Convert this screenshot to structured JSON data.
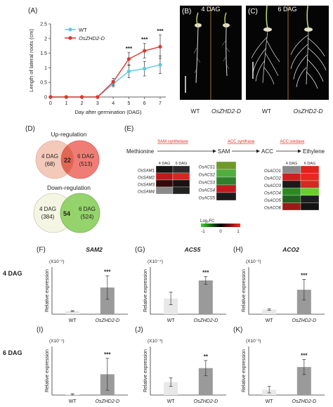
{
  "panels": {
    "A": "(A)",
    "B": "(B)",
    "C": "(C)",
    "D": "(D)",
    "E": "(E)",
    "F": "(F)",
    "G": "(G)",
    "H": "(H)",
    "I": "(I)",
    "J": "(J)",
    "K": "(K)"
  },
  "photos": {
    "b_title": "4 DAG",
    "c_title": "6 DAG",
    "b_wt": "WT",
    "b_mut": "OsZHD2-D",
    "c_wt": "WT",
    "c_mut": "OsZHD2-D"
  },
  "venn": {
    "up_title": "Up-regulation",
    "down_title": "Down-regulation",
    "up_left_label": "4 DAG",
    "up_left_count": "(68)",
    "up_overlap": "22",
    "up_right_label": "6 DAG",
    "up_right_count": "(513)",
    "down_left_label": "4 DAG",
    "down_left_count": "(384)",
    "down_overlap": "54",
    "down_right_label": "6 DAG",
    "down_right_count": "(524)",
    "colors": {
      "up_left": "#f3c9b9",
      "up_right": "#ee6f66",
      "down_left": "#f4f5e2",
      "down_right": "#8ccf60"
    }
  },
  "pathway": {
    "steps": [
      "Methionine",
      "SAM",
      "ACC",
      "Ethylene"
    ],
    "enzymes": [
      "SAM synthetase",
      "ACC synthase",
      "ACC oxidase"
    ],
    "enzyme_color": "#e0261c",
    "col_headers": [
      "4 DAG",
      "6 DAG"
    ],
    "sam_genes": [
      "OsSAM1",
      "OsSAM2",
      "OsSAM3",
      "OsSAM4"
    ],
    "sam_colors": [
      [
        "#151515",
        "#2a2a2a"
      ],
      [
        "#c0181c",
        "#d82525"
      ],
      [
        "#330a0a",
        "#1a1111"
      ],
      [
        "#8a8a8a",
        "#222222"
      ]
    ],
    "acs_genes": [
      "OsACS1",
      "OsACS2",
      "OsACS3",
      "OsACS4",
      "OsACS5"
    ],
    "acs_colors": [
      [
        "#6f9a2a"
      ],
      [
        "#4fae3f"
      ],
      [
        "#2f7f2b"
      ],
      [
        "#c01c1c"
      ],
      [
        "#1b1b1b"
      ]
    ],
    "aco_genes": [
      "OsACO1",
      "OsACO2",
      "OsACO3",
      "OsACO4",
      "OsACO5",
      "OsACO6"
    ],
    "aco_colors": [
      [
        "#8a8a8a",
        "#e0231c"
      ],
      [
        "#d01d1d",
        "#e8281e"
      ],
      [
        "#1a1a1a",
        "#d42a22"
      ],
      [
        "#2b8a1f",
        "#66d02e"
      ],
      [
        "#20621f",
        "#1e1e1e"
      ],
      [
        "#a01818",
        "#141414"
      ]
    ],
    "legend_title": "Log₂FC",
    "legend_ticks": [
      "-1",
      "0",
      "1"
    ]
  },
  "chart_data": [
    {
      "id": "A",
      "type": "line",
      "x": [
        0,
        1,
        2,
        3,
        4,
        5,
        6,
        7
      ],
      "xlabel": "Day after germination (DAG)",
      "ylabel": "Length of lateral roots (cm)",
      "xlim": [
        0,
        7
      ],
      "ylim": [
        0,
        2.5
      ],
      "xticks": [
        "0",
        "1",
        "2",
        "3",
        "4",
        "5",
        "6",
        "7"
      ],
      "yticks": [
        "0",
        "0.5",
        "1",
        "1.5",
        "2",
        "2.5"
      ],
      "legend_position": "top-left",
      "series": [
        {
          "name": "WT",
          "color": "#5cc8e6",
          "values": [
            0,
            0,
            0,
            0,
            0.45,
            0.88,
            0.97,
            1.1
          ],
          "errors": [
            0,
            0,
            0,
            0,
            0.1,
            0.22,
            0.25,
            0.3
          ]
        },
        {
          "name": "OsZHD2-D",
          "color": "#e0362f",
          "values": [
            0,
            0,
            0,
            0,
            0.52,
            1.3,
            1.58,
            1.72
          ],
          "errors": [
            0,
            0,
            0,
            0,
            0.12,
            0.22,
            0.25,
            0.4
          ]
        }
      ],
      "annotations": [
        {
          "x": 5,
          "text": "***"
        },
        {
          "x": 6,
          "text": "***"
        },
        {
          "x": 7,
          "text": "***"
        }
      ]
    },
    {
      "id": "F",
      "type": "bar",
      "title": "SAM2",
      "scale": "(X10⁻²)",
      "row_label": "4 DAG",
      "ylabel": "Relative expression",
      "categories": [
        "WT",
        "OsZHD2-D"
      ],
      "values": [
        0.4,
        3.4
      ],
      "errors": [
        0.05,
        1.5
      ],
      "ylim": [
        0,
        6
      ],
      "sig": "***",
      "colors": [
        "#e8e8e8",
        "#9a9a9a"
      ]
    },
    {
      "id": "G",
      "type": "bar",
      "title": "ACS5",
      "scale": "(X10⁻⁴)",
      "row_label": "",
      "ylabel": "Relative expression",
      "categories": [
        "WT",
        "OsZHD2-D"
      ],
      "values": [
        2.0,
        4.3
      ],
      "errors": [
        0.8,
        0.5
      ],
      "ylim": [
        0,
        6
      ],
      "sig": "***",
      "colors": [
        "#e8e8e8",
        "#9a9a9a"
      ]
    },
    {
      "id": "H",
      "type": "bar",
      "title": "ACO2",
      "scale": "(X10⁻²)",
      "row_label": "",
      "ylabel": "Relative expression",
      "categories": [
        "WT",
        "OsZHD2-D"
      ],
      "values": [
        0.5,
        2.6
      ],
      "errors": [
        0.08,
        1.1
      ],
      "ylim": [
        0,
        5
      ],
      "sig": "***",
      "colors": [
        "#e8e8e8",
        "#9a9a9a"
      ]
    },
    {
      "id": "I",
      "type": "bar",
      "title": "",
      "scale": "(X10⁻¹)",
      "row_label": "6 DAG",
      "ylabel": "Relative expression",
      "categories": [
        "WT",
        "OsZHD2-D"
      ],
      "values": [
        0.1,
        3.0
      ],
      "errors": [
        0.1,
        2.3
      ],
      "ylim": [
        0,
        7
      ],
      "sig": "***",
      "colors": [
        "#e8e8e8",
        "#9a9a9a"
      ]
    },
    {
      "id": "J",
      "type": "bar",
      "title": "",
      "scale": "(X10⁻³)",
      "row_label": "",
      "ylabel": "Relative expression",
      "categories": [
        "WT",
        "OsZHD2-D"
      ],
      "values": [
        1.2,
        2.5
      ],
      "errors": [
        0.4,
        0.7
      ],
      "ylim": [
        0,
        4.5
      ],
      "sig": "**",
      "colors": [
        "#e8e8e8",
        "#9a9a9a"
      ]
    },
    {
      "id": "K",
      "type": "bar",
      "title": "",
      "scale": "(X10⁻³)",
      "row_label": "",
      "ylabel": "Relative expression",
      "categories": [
        "WT",
        "OsZHD2-D"
      ],
      "values": [
        0.5,
        2.6
      ],
      "errors": [
        0.3,
        0.7
      ],
      "ylim": [
        0,
        4.5
      ],
      "sig": "***",
      "colors": [
        "#e8e8e8",
        "#9a9a9a"
      ]
    }
  ]
}
